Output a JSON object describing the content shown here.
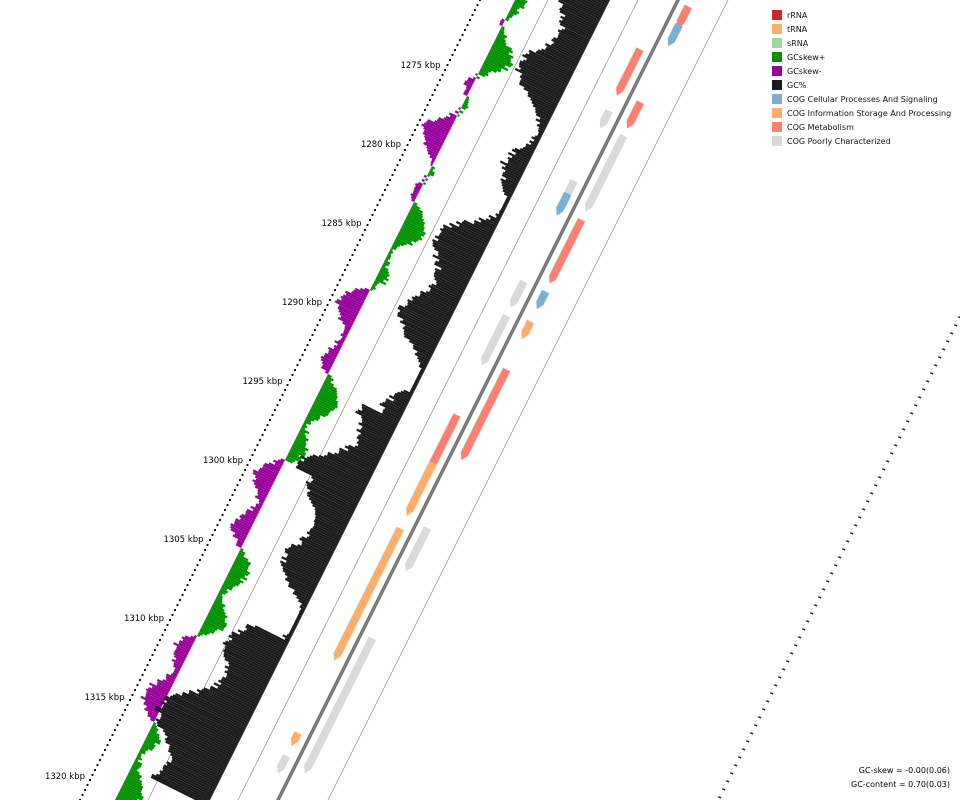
{
  "legend": [
    {
      "label": "rRNA",
      "color": "#d62728"
    },
    {
      "label": "tRNA",
      "color": "#fdae6b"
    },
    {
      "label": "sRNA",
      "color": "#a1d99b"
    },
    {
      "label": "GCskew+",
      "color": "#009100"
    },
    {
      "label": "GCskew-",
      "color": "#99009b"
    },
    {
      "label": "GC%",
      "color": "#1a1a1a"
    },
    {
      "label": "COG Cellular Processes And Signaling",
      "color": "#7bafd4"
    },
    {
      "label": "COG Information Storage And Processing",
      "color": "#fdae6b"
    },
    {
      "label": "COG Metabolism",
      "color": "#fb8072"
    },
    {
      "label": "COG Poorly Characterized",
      "color": "#d9d9d9"
    }
  ],
  "summary": {
    "gc_skew": "GC-skew = -0.00(0.06)",
    "gc_content": "GC-content = 0.70(0.03)"
  },
  "axis": {
    "labels": [
      {
        "text": "1275 kbp",
        "kbp": 1275
      },
      {
        "text": "1280 kbp",
        "kbp": 1280
      },
      {
        "text": "1285 kbp",
        "kbp": 1285
      },
      {
        "text": "1290 kbp",
        "kbp": 1290
      },
      {
        "text": "1295 kbp",
        "kbp": 1295
      },
      {
        "text": "1300 kbp",
        "kbp": 1300
      },
      {
        "text": "1305 kbp",
        "kbp": 1305
      },
      {
        "text": "1310 kbp",
        "kbp": 1310
      },
      {
        "text": "1315 kbp",
        "kbp": 1315
      },
      {
        "text": "1320 kbp",
        "kbp": 1320
      }
    ]
  }
}
